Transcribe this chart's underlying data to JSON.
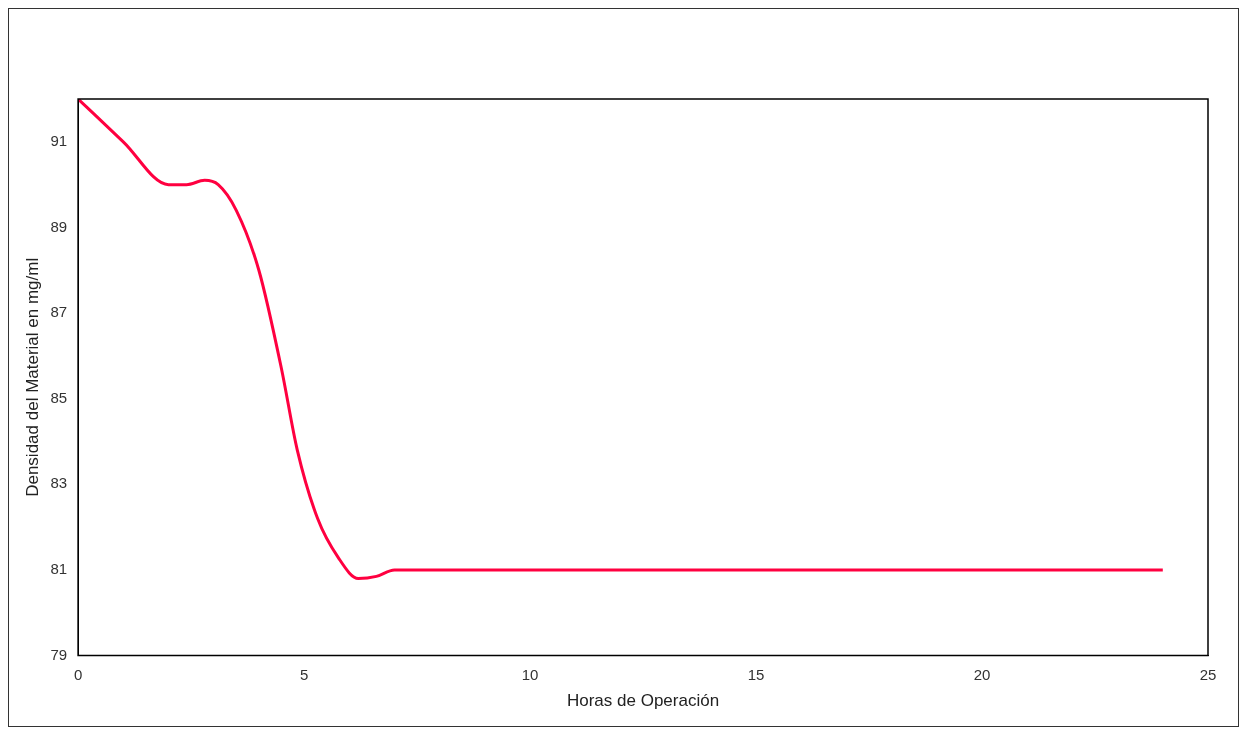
{
  "chart_data": {
    "type": "line",
    "xlabel": "Horas de Operación",
    "ylabel": "Densidad del Material en mg/ml",
    "xlim": [
      0,
      25
    ],
    "xticks": [
      0,
      5,
      10,
      15,
      20,
      25
    ],
    "ylim": [
      79,
      92
    ],
    "yticks": [
      79,
      81,
      83,
      85,
      87,
      89,
      91
    ],
    "grid": false,
    "legend": false,
    "marker": "none",
    "line_style": "solid",
    "series": [
      {
        "color": "#ff0040",
        "x": [
          0,
          1,
          2,
          2.4,
          2.8,
          3.1,
          3.5,
          4,
          4.5,
          4.85,
          5.3,
          5.75,
          6.2,
          6.6,
          7,
          8,
          10,
          15,
          20,
          24
        ],
        "values": [
          92,
          91,
          90,
          90,
          90.1,
          90,
          89.4,
          88,
          85.7,
          83.8,
          82.2,
          81.3,
          80.8,
          80.85,
          81,
          81,
          81,
          81,
          81,
          81
        ]
      }
    ]
  }
}
